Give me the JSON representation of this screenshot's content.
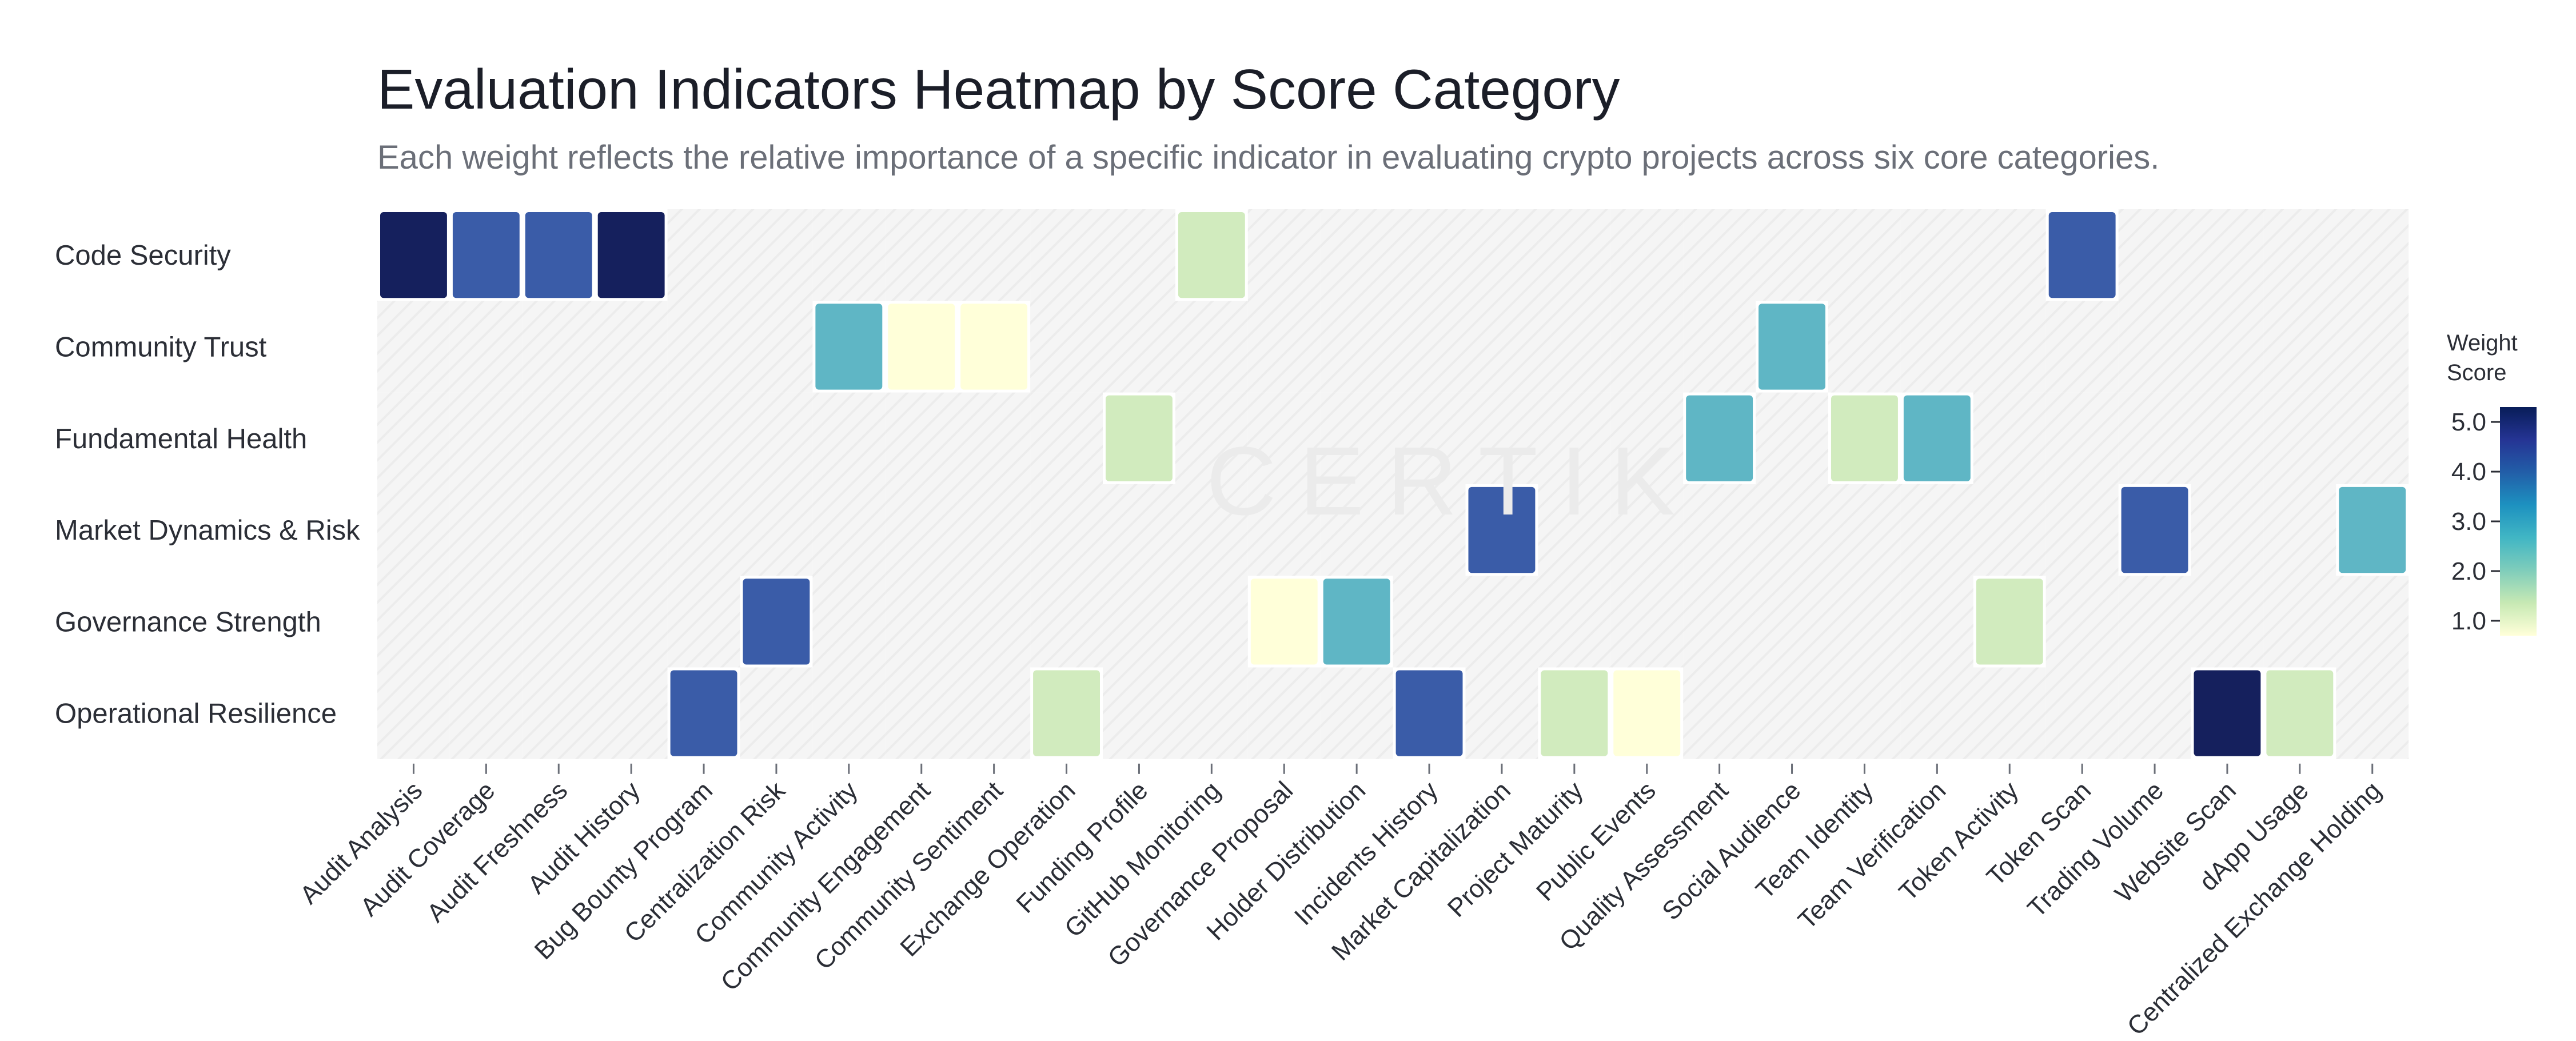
{
  "chart_data": {
    "type": "heatmap",
    "title": "Evaluation Indicators Heatmap by Score Category",
    "subtitle": "Each weight reflects the relative importance of a specific indicator in evaluating crypto projects across six core categories.",
    "watermark": "CERTIK",
    "rows": [
      "Code Security",
      "Community Trust",
      "Fundamental Health",
      "Market Dynamics & Risk",
      "Governance Strength",
      "Operational Resilience"
    ],
    "columns": [
      "Audit Analysis",
      "Audit Coverage",
      "Audit Freshness",
      "Audit History",
      "Bug Bounty Program",
      "Centralization Risk",
      "Community Activity",
      "Community Engagement",
      "Community Sentiment",
      "Exchange Operation",
      "Funding Profile",
      "GitHub Monitoring",
      "Governance Proposal",
      "Holder Distribution",
      "Incidents History",
      "Market Capitalization",
      "Project Maturity",
      "Public Events",
      "Quality Assessment",
      "Social Audience",
      "Team Identity",
      "Team Verification",
      "Token Activity",
      "Token Scan",
      "Trading Volume",
      "Website Scan",
      "dApp Usage",
      "Centralized Exchange Holding"
    ],
    "values": [
      [
        5,
        4,
        4,
        5,
        null,
        null,
        null,
        null,
        null,
        null,
        null,
        2,
        null,
        null,
        null,
        null,
        null,
        null,
        null,
        null,
        null,
        null,
        null,
        4,
        null,
        null,
        null,
        null
      ],
      [
        null,
        null,
        null,
        null,
        null,
        null,
        3,
        1,
        1,
        null,
        null,
        null,
        null,
        null,
        null,
        null,
        null,
        null,
        null,
        3,
        null,
        null,
        null,
        null,
        null,
        null,
        null,
        null
      ],
      [
        null,
        null,
        null,
        null,
        null,
        null,
        null,
        null,
        null,
        null,
        2,
        null,
        null,
        null,
        null,
        null,
        null,
        null,
        3,
        null,
        2,
        3,
        null,
        null,
        null,
        null,
        null,
        null
      ],
      [
        null,
        null,
        null,
        null,
        null,
        null,
        null,
        null,
        null,
        null,
        null,
        null,
        null,
        null,
        null,
        4,
        null,
        null,
        null,
        null,
        null,
        null,
        null,
        null,
        4,
        null,
        null,
        3
      ],
      [
        null,
        null,
        null,
        null,
        null,
        4,
        null,
        null,
        null,
        null,
        null,
        null,
        1,
        3,
        null,
        null,
        null,
        null,
        null,
        null,
        null,
        null,
        2,
        null,
        null,
        null,
        null,
        null
      ],
      [
        null,
        null,
        null,
        null,
        4,
        null,
        null,
        null,
        null,
        2,
        null,
        null,
        null,
        null,
        4,
        null,
        2,
        1,
        null,
        null,
        null,
        null,
        null,
        null,
        null,
        5,
        2,
        null
      ]
    ],
    "colorbar": {
      "title_lines": [
        "Weight",
        "Score"
      ],
      "ticks": [
        "5.0",
        "4.0",
        "3.0",
        "2.0",
        "1.0"
      ],
      "min": 0.7,
      "max": 5.3,
      "color_stops": [
        "#ffffd9",
        "#c7e9b4",
        "#7fcdbb",
        "#41b6c4",
        "#1d91c0",
        "#225ea8",
        "#253494",
        "#081d58"
      ]
    },
    "value_colors": {
      "1": "#ffffd9",
      "2": "#d1ebbe",
      "3": "#5fb6c5",
      "4": "#3a5ca8",
      "5": "#15205d"
    },
    "empty_cell_color": "#f4f4f4"
  }
}
